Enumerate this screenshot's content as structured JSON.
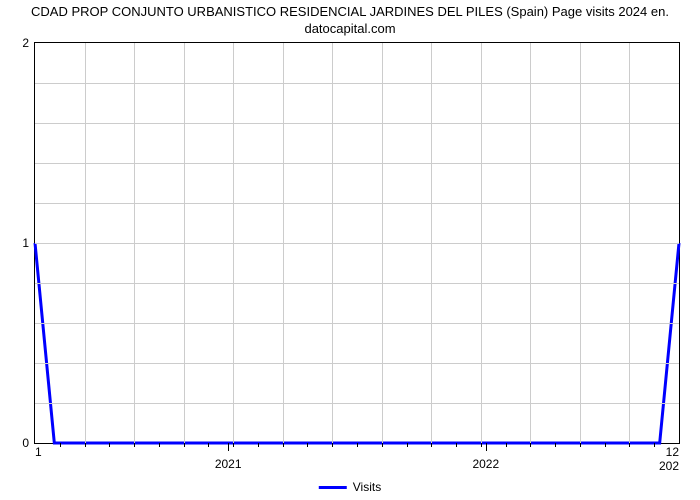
{
  "chart": {
    "type": "line",
    "title_line1": "CDAD PROP CONJUNTO URBANISTICO RESIDENCIAL JARDINES DEL PILES (Spain) Page visits 2024 en.",
    "title_line2": "datocapital.com",
    "title_fontsize": 13,
    "background_color": "#ffffff",
    "border_color": "#000000",
    "grid_color": "#cccccc",
    "text_color": "#000000",
    "series": {
      "name": "Visits",
      "color": "#0000ff",
      "line_width": 3,
      "points_x": [
        0,
        3,
        97,
        100
      ],
      "points_y": [
        1,
        0,
        0,
        1
      ]
    },
    "y_axis": {
      "min": 0,
      "max": 2,
      "ticks": [
        0,
        1,
        2
      ],
      "grid_sub": 5
    },
    "x_axis": {
      "left_label": "1",
      "right_label": "12",
      "right_label2": "202",
      "major_ticks": [
        {
          "label": "2021",
          "pos_pct": 30
        },
        {
          "label": "2022",
          "pos_pct": 70
        }
      ],
      "minor_count": 26
    },
    "legend_label": "Visits"
  }
}
